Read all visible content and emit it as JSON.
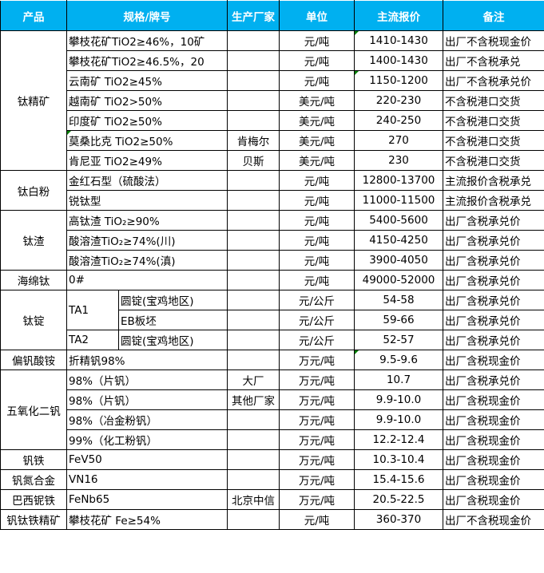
{
  "header": {
    "product": "产品",
    "spec": "规格/牌号",
    "maker": "生产厂家",
    "unit": "单位",
    "price": "主流报价",
    "note": "备注"
  },
  "colors": {
    "header_bg": "#00B0F0",
    "comment_marker": "#008000"
  },
  "groups": [
    {
      "product": "钛精矿",
      "rows": [
        {
          "spec": "攀枝花矿TiO2≥46%，10矿",
          "maker": "",
          "unit": "元/吨",
          "price": "1410-1430",
          "note": "出厂不含税现金价",
          "price_comment": true
        },
        {
          "spec": "攀枝花矿TiO2≥46.5%，20",
          "maker": "",
          "unit": "元/吨",
          "price": "1400-1430",
          "note": "出厂不含税承兑"
        },
        {
          "spec": "云南矿 TiO2≥45%",
          "maker": "",
          "unit": "元/吨",
          "price": "1150-1200",
          "note": "出厂不含税承兑价",
          "price_comment": true
        },
        {
          "spec": "越南矿 TiO2>50%",
          "maker": "",
          "unit": "美元/吨",
          "price": "220-230",
          "note": "不含税港口交货"
        },
        {
          "spec": "印度矿 TiO2≥50%",
          "maker": "",
          "unit": "美元/吨",
          "price": "240-250",
          "note": "不含税港口交货"
        },
        {
          "spec": "莫桑比克 TiO2≥50%",
          "maker": "肯梅尔",
          "unit": "美元/吨",
          "price": "270",
          "note": "不含税港口交货",
          "spec_comment": true
        },
        {
          "spec": "肯尼亚 TiO2≥49%",
          "maker": "贝斯",
          "unit": "美元/吨",
          "price": "230",
          "note": "不含税港口交货"
        }
      ]
    },
    {
      "product": "钛白粉",
      "rows": [
        {
          "spec": "金红石型（硫酸法）",
          "maker": "",
          "unit": "元/吨",
          "price": "12800-13700",
          "note": "主流报价含税承兑"
        },
        {
          "spec": "锐钛型",
          "maker": "",
          "unit": "元/吨",
          "price": "11000-11500",
          "note": "主流报价含税承兑"
        }
      ]
    },
    {
      "product": "钛渣",
      "rows": [
        {
          "spec": "高钛渣 TiO₂≥90%",
          "maker": "",
          "unit": "元/吨",
          "price": "5400-5600",
          "note": "出厂含税承兑价"
        },
        {
          "spec": "酸溶渣TiO₂≥74%(川)",
          "maker": "",
          "unit": "元/吨",
          "price": "4150-4250",
          "note": "出厂含税承兑价"
        },
        {
          "spec": "酸溶渣TiO₂≥74%(滇)",
          "maker": "",
          "unit": "元/吨",
          "price": "3900-4050",
          "note": "出厂含税承兑价"
        }
      ]
    },
    {
      "product": "海绵钛",
      "rows": [
        {
          "spec": "0#",
          "maker": "",
          "unit": "元/吨",
          "price": "49000-52000",
          "note": "出厂含税承兑价"
        }
      ]
    },
    {
      "product": "钛锭",
      "grades": [
        {
          "grade": "TA1",
          "rows": [
            {
              "spec": "圆锭(宝鸡地区)",
              "maker": "",
              "unit": "元/公斤",
              "price": "54-58",
              "note": "出厂含税承兑价"
            },
            {
              "spec": "EB板坯",
              "maker": "",
              "unit": "元/公斤",
              "price": "59-66",
              "note": "出厂含税承兑价"
            }
          ]
        },
        {
          "grade": "TA2",
          "rows": [
            {
              "spec": "圆锭(宝鸡地区)",
              "maker": "",
              "unit": "元/公斤",
              "price": "52-57",
              "note": "出厂含税承兑价"
            }
          ]
        }
      ]
    },
    {
      "product": "偏钒酸铵",
      "rows": [
        {
          "spec": "折精钒98%",
          "maker": "",
          "unit": "万元/吨",
          "price": "9.5-9.6",
          "note": "出厂含税现金价",
          "price_comment": true
        }
      ]
    },
    {
      "product": "五氧化二钒",
      "rows": [
        {
          "spec": "98%（片钒）",
          "maker": "大厂",
          "unit": "万元/吨",
          "price": "10.7",
          "note": "出厂含税承兑价"
        },
        {
          "spec": "98%（片钒）",
          "maker": "其他厂家",
          "unit": "万元/吨",
          "price": "9.9-10.0",
          "note": "出厂含税现金价"
        },
        {
          "spec": "98%（冶金粉钒）",
          "maker": "",
          "unit": "万元/吨",
          "price": "9.9-10.0",
          "note": "出厂含税现金价"
        },
        {
          "spec": "99%（化工粉钒）",
          "maker": "",
          "unit": "万元/吨",
          "price": "12.2-12.4",
          "note": "出厂含税现金价"
        }
      ]
    },
    {
      "product": "钒铁",
      "rows": [
        {
          "spec": "FeV50",
          "maker": "",
          "unit": "万元/吨",
          "price": "10.3-10.4",
          "note": "出厂含税现金价"
        }
      ]
    },
    {
      "product": "钒氮合金",
      "rows": [
        {
          "spec": "VN16",
          "maker": "",
          "unit": "万元/吨",
          "price": "15.4-15.6",
          "note": "出厂含税现金价"
        }
      ]
    },
    {
      "product": "巴西铌铁",
      "rows": [
        {
          "spec": "FeNb65",
          "maker": "北京中信",
          "unit": "万元/吨",
          "price": "20.5-22.5",
          "note": "出厂含税现金价"
        }
      ]
    },
    {
      "product": "钒钛铁精矿",
      "rows": [
        {
          "spec": "攀枝花矿 Fe≥54%",
          "maker": "",
          "unit": "元/吨",
          "price": "360-370",
          "note": "出厂不含税现金价"
        }
      ]
    }
  ]
}
